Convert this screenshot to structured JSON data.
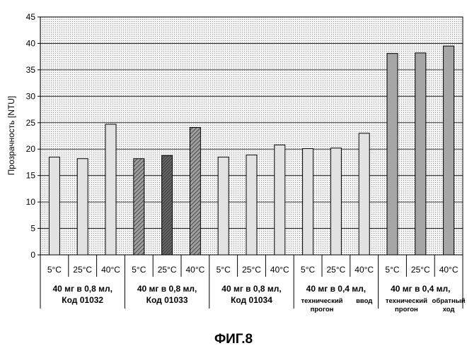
{
  "chart_data": {
    "type": "bar",
    "ylabel": "Прозрачность [NTU]",
    "ylim": [
      0,
      45
    ],
    "y_ticks": [
      "0",
      "5",
      "10",
      "15",
      "20",
      "25",
      "30",
      "35",
      "40",
      "45"
    ],
    "grid": true,
    "categories": [
      "5°C",
      "25°C",
      "40°C",
      "5°C",
      "25°C",
      "40°C",
      "5°C",
      "25°C",
      "40°C",
      "5°C",
      "25°C",
      "40°C",
      "5°C",
      "25°C",
      "40°C"
    ],
    "values": [
      18.5,
      18.2,
      24.7,
      18.2,
      18.8,
      24.1,
      18.5,
      18.9,
      20.8,
      20.1,
      20.2,
      23.0,
      38.1,
      38.2,
      39.5
    ],
    "bar_styles": [
      "light",
      "light",
      "light",
      "hatch",
      "hatch-dark",
      "hatch",
      "light",
      "light",
      "light",
      "light",
      "light",
      "light",
      "dark",
      "dark",
      "dark"
    ],
    "groups": [
      {
        "lines": [
          "40 мг в 0,8 мл,",
          "Код 01032"
        ]
      },
      {
        "lines": [
          "40 мг в 0,8 мл,",
          "Код 01033"
        ]
      },
      {
        "lines": [
          "40 мг в 0,8 мл,",
          "Код 01034"
        ]
      },
      {
        "line1": "40 мг в 0,4 мл,",
        "sub_left": [
          "технический",
          "прогон"
        ],
        "sub_right": [
          "ввод"
        ]
      },
      {
        "line1": "40 мг в 0,4 мл,",
        "sub_left": [
          "технический",
          "прогон"
        ],
        "sub_right": [
          "обратный",
          "ход"
        ]
      }
    ],
    "caption": "ФИГ.8"
  },
  "colors": {
    "plot_bg": "#ececec",
    "bar_light": "#e2e2e2",
    "bar_dark": "#a6a6a6",
    "hatch_bg": "#a0a0a0",
    "hatch_line": "#303030"
  }
}
